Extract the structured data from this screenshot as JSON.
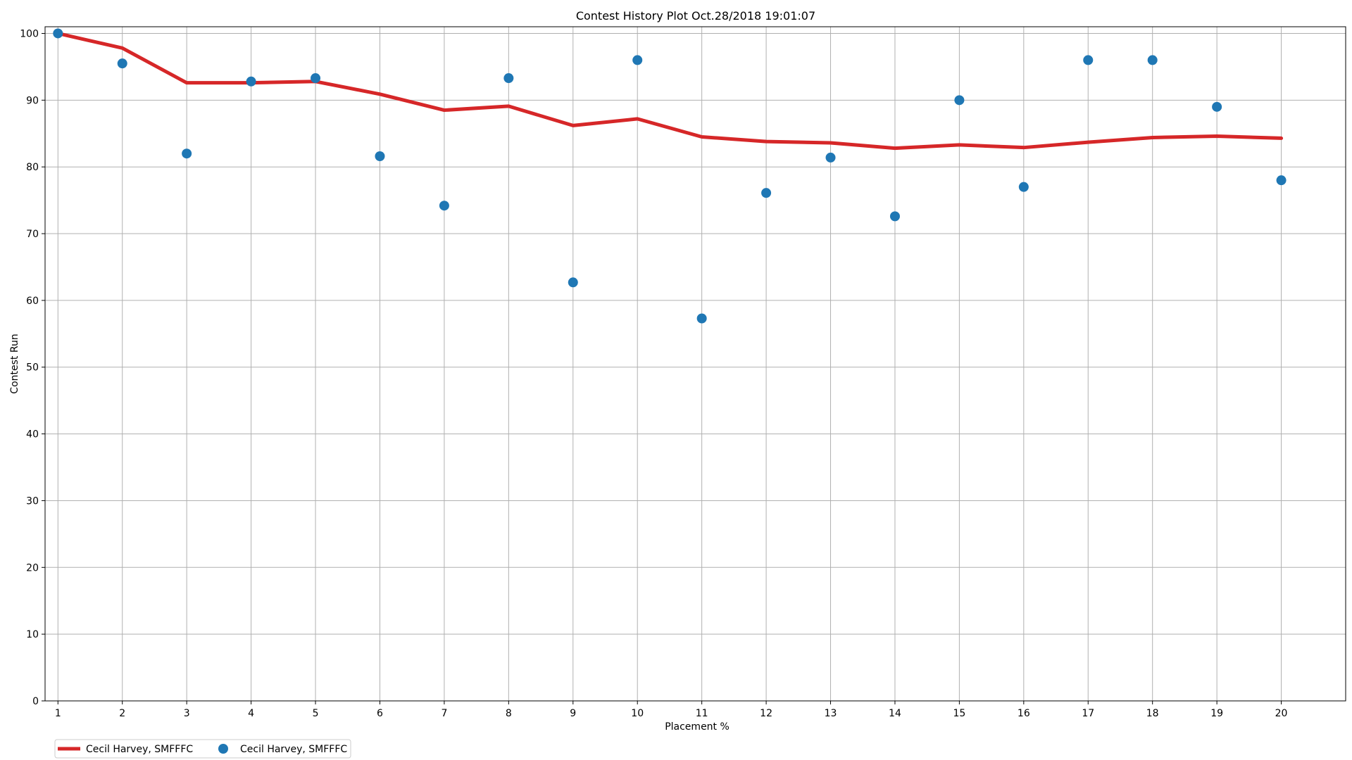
{
  "chart_data": {
    "type": "line",
    "title": "Contest History Plot Oct.28/2018 19:01:07",
    "xlabel": "Placement %",
    "ylabel": "Contest Run",
    "x": [
      1,
      2,
      3,
      4,
      5,
      6,
      7,
      8,
      9,
      10,
      11,
      12,
      13,
      14,
      15,
      16,
      17,
      18,
      19,
      20
    ],
    "xlim": [
      0.8,
      21.0
    ],
    "ylim": [
      0,
      101
    ],
    "xticks": [
      "1",
      "2",
      "3",
      "4",
      "5",
      "6",
      "7",
      "8",
      "9",
      "10",
      "11",
      "12",
      "13",
      "14",
      "15",
      "16",
      "17",
      "18",
      "19",
      "20"
    ],
    "yticks": [
      "0",
      "10",
      "20",
      "30",
      "40",
      "50",
      "60",
      "70",
      "80",
      "90",
      "100"
    ],
    "grid": true,
    "legend_position": "below-left",
    "series": [
      {
        "name": "Cecil Harvey, SMFFFC",
        "kind": "line",
        "color": "#d62728",
        "values": [
          100.0,
          97.8,
          92.6,
          92.6,
          92.8,
          90.9,
          88.5,
          89.1,
          86.2,
          87.2,
          84.5,
          83.8,
          83.6,
          82.8,
          83.3,
          82.9,
          83.7,
          84.4,
          84.6,
          84.3
        ]
      },
      {
        "name": "Cecil Harvey, SMFFFC",
        "kind": "scatter",
        "color": "#1f77b4",
        "values": [
          100.0,
          95.5,
          82.0,
          92.8,
          93.3,
          81.6,
          74.2,
          93.3,
          62.7,
          96.0,
          57.3,
          76.1,
          81.4,
          72.6,
          90.0,
          77.0,
          96.0,
          96.0,
          89.0,
          78.0
        ]
      }
    ]
  }
}
